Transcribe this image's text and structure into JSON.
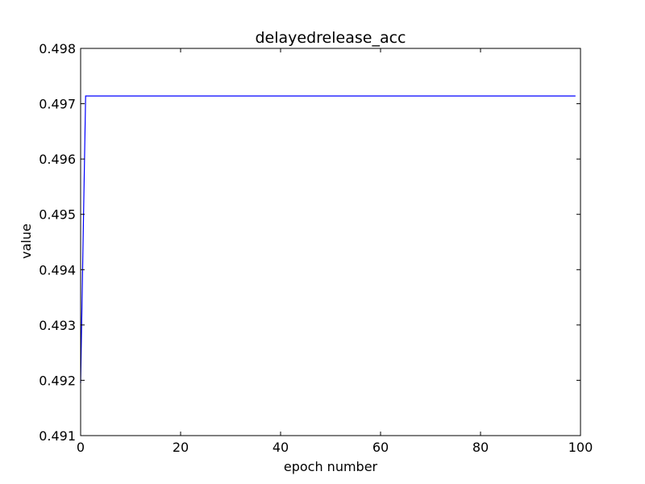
{
  "chart_data": {
    "type": "line",
    "title": "delayedrelease_acc",
    "xlabel": "epoch number",
    "ylabel": "value",
    "xlim": [
      0,
      100
    ],
    "ylim": [
      0.491,
      0.498
    ],
    "x_ticks": [
      0,
      20,
      40,
      60,
      80,
      100
    ],
    "x_tick_labels": [
      "0",
      "20",
      "40",
      "60",
      "80",
      "100"
    ],
    "y_ticks": [
      0.491,
      0.492,
      0.493,
      0.494,
      0.495,
      0.496,
      0.497,
      0.498
    ],
    "y_tick_labels": [
      "0.491",
      "0.492",
      "0.493",
      "0.494",
      "0.495",
      "0.496",
      "0.497",
      "0.498"
    ],
    "grid": false,
    "series": [
      {
        "name": "delayedrelease_acc",
        "color": "#0000ff",
        "x": [
          0,
          1,
          99
        ],
        "values": [
          0.49195,
          0.49714,
          0.49714
        ]
      }
    ]
  }
}
